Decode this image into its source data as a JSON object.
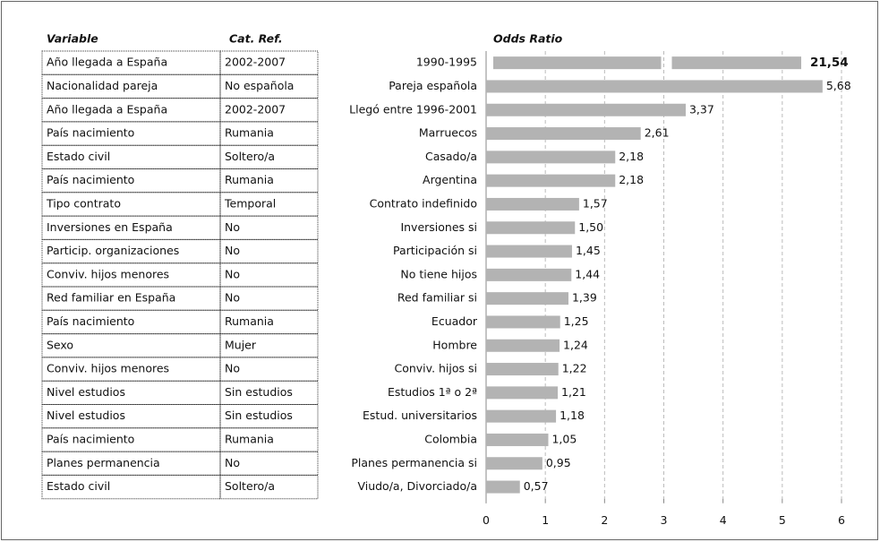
{
  "chart_data": {
    "type": "bar",
    "orientation": "horizontal",
    "title": "Odds Ratio",
    "table": {
      "headers": [
        "Variable",
        "Cat. Ref."
      ],
      "rows": [
        [
          "Año llegada a España",
          "2002-2007"
        ],
        [
          "Nacionalidad pareja",
          "No española"
        ],
        [
          "Año llegada a España",
          "2002-2007"
        ],
        [
          "País nacimiento",
          "Rumania"
        ],
        [
          "Estado civil",
          "Soltero/a"
        ],
        [
          "País nacimiento",
          "Rumania"
        ],
        [
          "Tipo contrato",
          "Temporal"
        ],
        [
          "Inversiones en España",
          "No"
        ],
        [
          "Particip. organizaciones",
          "No"
        ],
        [
          "Conviv. hijos menores",
          "No"
        ],
        [
          "Red familiar en España",
          "No"
        ],
        [
          "País nacimiento",
          "Rumania"
        ],
        [
          "Sexo",
          "Mujer"
        ],
        [
          "Conviv. hijos menores",
          "No"
        ],
        [
          "Nivel estudios",
          "Sin estudios"
        ],
        [
          "Nivel estudios",
          "Sin estudios"
        ],
        [
          "País nacimiento",
          "Rumania"
        ],
        [
          "Planes permanencia",
          "No"
        ],
        [
          "Estado civil",
          "Soltero/a"
        ]
      ]
    },
    "categories": [
      "1990-1995",
      "Pareja española",
      "Llegó entre 1996-2001",
      "Marruecos",
      "Casado/a",
      "Argentina",
      "Contrato indefinido",
      "Inversiones si",
      "Participación si",
      "No tiene hijos",
      "Red familiar si",
      "Ecuador",
      "Hombre",
      "Conviv. hijos si",
      "Estudios 1ª o 2ª",
      "Estud. universitarios",
      "Colombia",
      "Planes permanencia si",
      "Viudo/a, Divorciado/a"
    ],
    "values": [
      21.54,
      5.68,
      3.37,
      2.61,
      2.18,
      2.18,
      1.57,
      1.5,
      1.45,
      1.44,
      1.39,
      1.25,
      1.24,
      1.22,
      1.21,
      1.18,
      1.05,
      0.95,
      0.57
    ],
    "value_labels": [
      "21,54",
      "5,68",
      "3,37",
      "2,61",
      "2,18",
      "2,18",
      "1,57",
      "1,50",
      "1,45",
      "1,44",
      "1,39",
      "1,25",
      "1,24",
      "1,22",
      "1,21",
      "1,18",
      "1,05",
      "0,95",
      "0,57"
    ],
    "color": "#b3b3b3",
    "xlim": [
      0,
      6
    ],
    "xticks": [
      0,
      1,
      2,
      3,
      4,
      5,
      6
    ],
    "grid": true
  }
}
